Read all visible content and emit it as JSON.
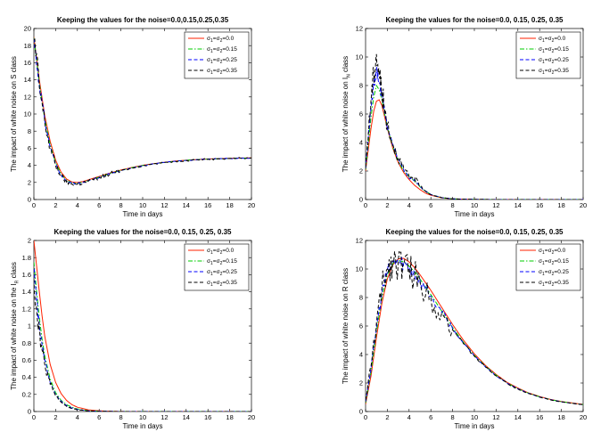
{
  "colors": {
    "s1": "#ff2200",
    "s2": "#00cc00",
    "s3": "#0000ff",
    "s4": "#000000"
  },
  "legend": [
    {
      "sub_a": "1",
      "sub_b": "2",
      "value": "0.0",
      "dash": ""
    },
    {
      "sub_a": "1",
      "sub_b": "2",
      "value": "0.15",
      "dash": "5,2,1.5,2"
    },
    {
      "sub_a": "1",
      "sub_b": "2",
      "value": "0.25",
      "dash": "4,2.5"
    },
    {
      "sub_a": "1",
      "sub_b": "2",
      "value": "0.35",
      "dash": "4,2.5"
    }
  ],
  "legend_prefix": "σ",
  "legend_eq": "=",
  "chart_data": [
    {
      "type": "line",
      "title": "Keeping the values for the noise=0.0,0.15,0.25,0.35",
      "xlabel": "Time in days",
      "ylabel": "The impact of white noise on S class",
      "xlim": [
        0,
        20
      ],
      "ylim": [
        0,
        20
      ],
      "xticks": [
        "0",
        "2",
        "4",
        "6",
        "8",
        "10",
        "12",
        "14",
        "16",
        "18",
        "20"
      ],
      "yticks": [
        "0",
        "2",
        "4",
        "6",
        "8",
        "10",
        "12",
        "14",
        "16",
        "18",
        "20"
      ],
      "x": [
        0,
        0.5,
        1,
        1.5,
        2,
        2.5,
        3,
        3.5,
        4,
        4.5,
        5,
        6,
        7,
        8,
        9,
        10,
        11,
        12,
        13,
        14,
        15,
        16,
        17,
        18,
        19,
        20
      ],
      "series": [
        {
          "name": "σ1=σ2=0.0",
          "values": [
            19,
            14,
            9.8,
            6.8,
            4.6,
            3.2,
            2.4,
            2.05,
            2.0,
            2.1,
            2.3,
            2.7,
            3.1,
            3.45,
            3.75,
            4.0,
            4.2,
            4.35,
            4.5,
            4.6,
            4.68,
            4.74,
            4.78,
            4.82,
            4.85,
            4.87
          ]
        },
        {
          "name": "σ1=σ2=0.15",
          "values": [
            18.9,
            13.6,
            9.4,
            6.4,
            4.3,
            3.0,
            2.25,
            1.95,
            1.92,
            2.02,
            2.22,
            2.62,
            3.04,
            3.4,
            3.72,
            3.98,
            4.18,
            4.34,
            4.48,
            4.59,
            4.67,
            4.73,
            4.77,
            4.81,
            4.84,
            4.86
          ]
        },
        {
          "name": "σ1=σ2=0.25",
          "values": [
            18.8,
            13.4,
            9.2,
            6.2,
            4.15,
            2.9,
            2.15,
            1.88,
            1.86,
            1.97,
            2.18,
            2.58,
            3.0,
            3.37,
            3.7,
            3.96,
            4.17,
            4.33,
            4.47,
            4.58,
            4.66,
            4.72,
            4.77,
            4.81,
            4.84,
            4.86
          ]
        },
        {
          "name": "σ1=σ2=0.35",
          "values": [
            18.7,
            13.2,
            9.0,
            6.0,
            4.0,
            2.8,
            2.05,
            1.8,
            1.8,
            1.92,
            2.14,
            2.55,
            2.98,
            3.35,
            3.68,
            3.95,
            4.16,
            4.33,
            4.47,
            4.58,
            4.66,
            4.72,
            4.77,
            4.81,
            4.84,
            4.86
          ]
        }
      ]
    },
    {
      "type": "line",
      "title": "Keeping the values for the noise=0.0, 0.15, 0.25, 0.35",
      "xlabel": "Time in days",
      "ylabel_main": "The impact of white noise on I",
      "ylabel_sub": "N",
      "ylabel_end": "class",
      "xlim": [
        0,
        20
      ],
      "ylim": [
        0,
        12
      ],
      "xticks": [
        "0",
        "2",
        "4",
        "6",
        "8",
        "10",
        "12",
        "14",
        "16",
        "18",
        "20"
      ],
      "yticks": [
        "0",
        "2",
        "4",
        "6",
        "8",
        "10",
        "12"
      ],
      "x": [
        0,
        0.25,
        0.5,
        0.75,
        1,
        1.25,
        1.5,
        1.75,
        2,
        2.5,
        3,
        3.5,
        4,
        4.5,
        5,
        5.5,
        6,
        7,
        8,
        9,
        10,
        12,
        14,
        16,
        18,
        20
      ],
      "series": [
        {
          "name": "σ1=σ2=0.0",
          "values": [
            2.0,
            3.5,
            5.0,
            6.2,
            6.9,
            7.0,
            6.6,
            5.8,
            5.0,
            3.6,
            2.6,
            1.9,
            1.4,
            1.0,
            0.7,
            0.45,
            0.3,
            0.12,
            0.05,
            0.02,
            0.01,
            0,
            0,
            0,
            0,
            0
          ]
        },
        {
          "name": "σ1=σ2=0.15",
          "values": [
            2.1,
            3.9,
            5.8,
            7.2,
            8.0,
            7.7,
            7.0,
            6.0,
            5.1,
            3.7,
            2.7,
            2.0,
            1.6,
            1.3,
            0.9,
            0.6,
            0.35,
            0.13,
            0.05,
            0.02,
            0.01,
            0,
            0,
            0,
            0,
            0
          ]
        },
        {
          "name": "σ1=σ2=0.25",
          "values": [
            2.2,
            4.3,
            6.5,
            8.0,
            9.1,
            8.3,
            7.3,
            6.1,
            5.2,
            3.8,
            2.8,
            2.1,
            1.5,
            1.4,
            0.9,
            0.6,
            0.35,
            0.13,
            0.05,
            0.02,
            0.01,
            0,
            0,
            0,
            0,
            0
          ]
        },
        {
          "name": "σ1=σ2=0.35",
          "values": [
            2.3,
            4.6,
            7.0,
            8.8,
            10.2,
            8.8,
            7.6,
            6.3,
            5.3,
            3.9,
            2.9,
            2.2,
            1.6,
            1.5,
            1.0,
            0.6,
            0.35,
            0.13,
            0.05,
            0.02,
            0.01,
            0,
            0,
            0,
            0,
            0
          ]
        }
      ]
    },
    {
      "type": "line",
      "title": "Keeping the values for the noise=0.0, 0.15, 0.25, 0.35",
      "xlabel": "Time in days",
      "ylabel_main": "The impact of white noise on the I",
      "ylabel_sub": "R",
      "ylabel_end": "class",
      "xlim": [
        0,
        20
      ],
      "ylim": [
        0,
        2
      ],
      "xticks": [
        "0",
        "2",
        "4",
        "6",
        "8",
        "10",
        "12",
        "14",
        "16",
        "18",
        "20"
      ],
      "yticks": [
        "0",
        "0.2",
        "0.4",
        "0.6",
        "0.8",
        "1",
        "1.2",
        "1.4",
        "1.6",
        "1.8",
        "2"
      ],
      "x": [
        0,
        0.25,
        0.5,
        0.75,
        1,
        1.5,
        2,
        2.5,
        3,
        3.5,
        4,
        5,
        6,
        7,
        8,
        10,
        12,
        14,
        16,
        18,
        20
      ],
      "series": [
        {
          "name": "σ1=σ2=0.0",
          "values": [
            2.0,
            1.7,
            1.4,
            1.12,
            0.88,
            0.55,
            0.34,
            0.21,
            0.13,
            0.08,
            0.05,
            0.02,
            0.008,
            0.003,
            0.001,
            0,
            0,
            0,
            0,
            0,
            0
          ]
        },
        {
          "name": "σ1=σ2=0.15",
          "values": [
            1.75,
            1.4,
            1.1,
            0.85,
            0.65,
            0.38,
            0.22,
            0.13,
            0.08,
            0.05,
            0.03,
            0.01,
            0.004,
            0.001,
            0,
            0,
            0,
            0,
            0,
            0,
            0
          ]
        },
        {
          "name": "σ1=σ2=0.25",
          "values": [
            1.65,
            1.3,
            1.0,
            0.78,
            0.6,
            0.34,
            0.2,
            0.12,
            0.07,
            0.04,
            0.025,
            0.008,
            0.003,
            0.001,
            0,
            0,
            0,
            0,
            0,
            0,
            0
          ]
        },
        {
          "name": "σ1=σ2=0.35",
          "values": [
            1.55,
            1.2,
            0.95,
            0.72,
            0.55,
            0.32,
            0.18,
            0.11,
            0.06,
            0.035,
            0.02,
            0.007,
            0.002,
            0.001,
            0,
            0,
            0,
            0,
            0,
            0,
            0
          ]
        }
      ]
    },
    {
      "type": "line",
      "title": "Keeping the values for the noise=0.0, 0.15, 0.25, 0.35",
      "xlabel": "Time in days",
      "ylabel": "The impact of white noise on R class",
      "xlim": [
        0,
        20
      ],
      "ylim": [
        0,
        12
      ],
      "xticks": [
        "0",
        "2",
        "4",
        "6",
        "8",
        "10",
        "12",
        "14",
        "16",
        "18",
        "20"
      ],
      "yticks": [
        "0",
        "2",
        "4",
        "6",
        "8",
        "10",
        "12"
      ],
      "x": [
        0,
        0.5,
        1,
        1.5,
        2,
        2.5,
        3,
        3.5,
        4,
        4.5,
        5,
        6,
        7,
        8,
        9,
        10,
        11,
        12,
        13,
        14,
        15,
        16,
        17,
        18,
        19,
        20
      ],
      "series": [
        {
          "name": "σ1=σ2=0.0",
          "values": [
            0.5,
            2.5,
            5.2,
            7.6,
            9.3,
            10.3,
            10.7,
            10.75,
            10.5,
            10.1,
            9.6,
            8.5,
            7.3,
            6.1,
            5.0,
            4.05,
            3.25,
            2.6,
            2.05,
            1.65,
            1.3,
            1.05,
            0.85,
            0.7,
            0.6,
            0.5
          ]
        },
        {
          "name": "σ1=σ2=0.15",
          "values": [
            0.6,
            2.8,
            5.6,
            8.0,
            9.6,
            10.4,
            10.6,
            10.5,
            10.2,
            9.8,
            9.3,
            8.2,
            7.05,
            5.9,
            4.85,
            3.95,
            3.2,
            2.55,
            2.0,
            1.6,
            1.28,
            1.03,
            0.84,
            0.69,
            0.58,
            0.49
          ]
        },
        {
          "name": "σ1=σ2=0.25",
          "values": [
            0.7,
            3.0,
            5.9,
            8.3,
            9.8,
            10.5,
            10.55,
            10.4,
            10.1,
            9.7,
            9.2,
            8.1,
            6.95,
            5.8,
            4.8,
            3.9,
            3.15,
            2.5,
            2.0,
            1.6,
            1.27,
            1.02,
            0.83,
            0.68,
            0.57,
            0.48
          ]
        },
        {
          "name": "σ1=σ2=0.35",
          "values": [
            0.8,
            3.2,
            6.2,
            8.6,
            10.0,
            10.6,
            10.5,
            10.3,
            10.0,
            9.6,
            9.1,
            8.0,
            6.9,
            5.75,
            4.75,
            3.88,
            3.12,
            2.5,
            1.98,
            1.58,
            1.26,
            1.01,
            0.82,
            0.68,
            0.57,
            0.48
          ]
        }
      ]
    }
  ]
}
